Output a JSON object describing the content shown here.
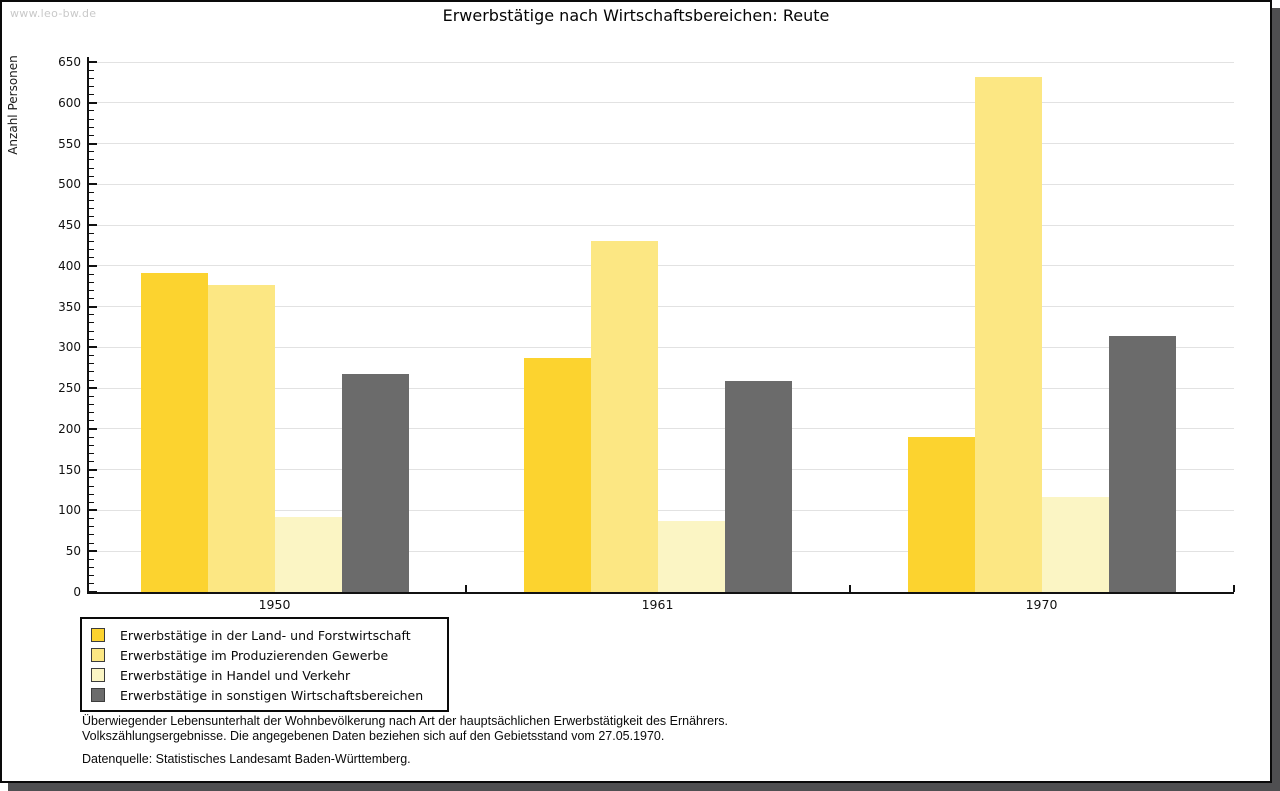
{
  "watermark": "www.leo-bw.de",
  "chart_data": {
    "type": "bar",
    "title": "Erwerbstätige nach Wirtschaftsbereichen: Reute",
    "ylabel": "Anzahl Personen",
    "ylim": [
      0,
      650
    ],
    "ytick_step": 50,
    "ytick_minor_step": 10,
    "grid": true,
    "legend_position": "bottom-left",
    "categories": [
      "1950",
      "1961",
      "1970"
    ],
    "series": [
      {
        "name": "Erwerbstätige in der Land- und Forstwirtschaft",
        "color": "#fcd32f",
        "values": [
          391,
          287,
          190
        ]
      },
      {
        "name": "Erwerbstätige im Produzierenden Gewerbe",
        "color": "#fce783",
        "values": [
          376,
          430,
          631
        ]
      },
      {
        "name": "Erwerbstätige in Handel und Verkehr",
        "color": "#fbf5c4",
        "values": [
          92,
          87,
          117
        ]
      },
      {
        "name": "Erwerbstätige in sonstigen Wirtschaftsbereichen",
        "color": "#6b6b6b",
        "values": [
          267,
          259,
          314
        ]
      }
    ]
  },
  "footer": {
    "line1": "Überwiegender Lebensunterhalt der Wohnbevölkerung nach Art der hauptsächlichen Erwerbstätigkeit des Ernährers.",
    "line2": "Volkszählungsergebnisse. Die angegebenen Daten beziehen sich auf den Gebietsstand vom 27.05.1970.",
    "source": "Datenquelle: Statistisches Landesamt Baden-Württemberg."
  }
}
